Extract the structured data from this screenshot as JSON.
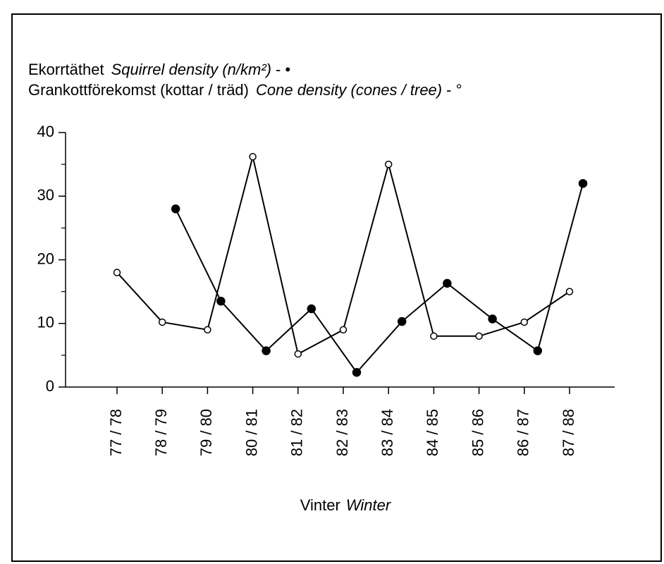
{
  "chart_data": {
    "type": "line",
    "categories": [
      "77 / 78",
      "78 / 79",
      "79 / 80",
      "80 / 81",
      "81 / 82",
      "82 / 83",
      "83 / 84",
      "84 / 85",
      "85 / 86",
      "86 / 87",
      "87 / 88"
    ],
    "series": [
      {
        "label": "Ekorrtäthet",
        "name": "Squirrel density (n/km²)",
        "symbol": "- •",
        "marker": "filled",
        "color": "#000000",
        "values": [
          null,
          28,
          13.5,
          5.7,
          12.3,
          2.3,
          10.3,
          16.3,
          10.7,
          5.7,
          32
        ]
      },
      {
        "label": "Grankottförekomst (kottar / träd)",
        "name": "Cone density (cones / tree)",
        "symbol": "- °",
        "marker": "open",
        "color": "#000000",
        "values": [
          18,
          10.2,
          9,
          36.2,
          5.2,
          9,
          35,
          8,
          8,
          10.2,
          15
        ]
      }
    ],
    "x_label": "Vinter",
    "x_label_en": "Winter",
    "ylim": [
      0,
      40
    ],
    "yticks": [
      0,
      10,
      20,
      30,
      40
    ],
    "yminor": [
      5,
      15,
      25,
      35
    ]
  }
}
